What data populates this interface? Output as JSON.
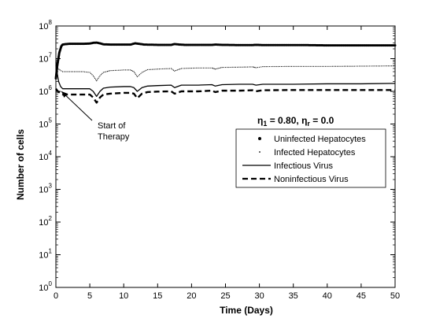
{
  "chart_data": {
    "type": "line",
    "title": "",
    "xlabel": "Time (Days)",
    "ylabel": "Number of cells",
    "xlim": [
      0,
      50
    ],
    "ylim_exponents": [
      0,
      8
    ],
    "log_y": true,
    "grid": false,
    "legend_placement": "right",
    "x_ticks": [
      "0",
      "5",
      "10",
      "15",
      "20",
      "25",
      "30",
      "35",
      "40",
      "45",
      "50"
    ],
    "y_ticks": [
      {
        "base": "10",
        "exp": "0"
      },
      {
        "base": "10",
        "exp": "1"
      },
      {
        "base": "10",
        "exp": "2"
      },
      {
        "base": "10",
        "exp": "3"
      },
      {
        "base": "10",
        "exp": "4"
      },
      {
        "base": "10",
        "exp": "5"
      },
      {
        "base": "10",
        "exp": "6"
      },
      {
        "base": "10",
        "exp": "7"
      },
      {
        "base": "10",
        "exp": "8"
      }
    ],
    "parameter_label": {
      "eta1_symbol": "η",
      "eta1_sub": "1",
      "eta1_value": " = 0.80, ",
      "etar_symbol": "η",
      "etar_sub": "r",
      "etar_value": " = 0.0"
    },
    "annotation": {
      "line1": "Start of",
      "line2": "Therapy",
      "x": 0.5,
      "y": 3000000
    },
    "series": [
      {
        "name": "Uninfected Hepatocytes",
        "style": "dotted-thick",
        "x": [
          0,
          0.2,
          0.5,
          0.8,
          1,
          1.5,
          2,
          3,
          4,
          5,
          5.5,
          6,
          6.5,
          7,
          8,
          9,
          10,
          11,
          11.7,
          12.5,
          13,
          15,
          17,
          17.5,
          18.2,
          19,
          21,
          23,
          23.5,
          24.5,
          27,
          29,
          29.5,
          30.5,
          33,
          35,
          37,
          40,
          45,
          50
        ],
        "y": [
          2500000,
          6000000,
          15000000,
          24000000,
          27000000,
          28000000,
          28500000,
          28500000,
          28500000,
          29000000,
          30500000,
          31000000,
          29500000,
          27500000,
          27000000,
          27000000,
          27000000,
          27000000,
          29500000,
          28000000,
          27000000,
          26500000,
          26500000,
          28000000,
          27000000,
          26500000,
          26500000,
          26500000,
          27000000,
          26500000,
          26000000,
          26000000,
          26500000,
          26000000,
          26000000,
          26000000,
          26000000,
          25500000,
          25500000,
          25500000
        ]
      },
      {
        "name": "Infected Hepatocytes",
        "style": "dotted-thin",
        "x": [
          0,
          0.3,
          0.6,
          1,
          1.5,
          2,
          3,
          4,
          5,
          5.5,
          6,
          6.5,
          7,
          8,
          10,
          11,
          11.5,
          12,
          12.7,
          13.5,
          15,
          17,
          17.5,
          18.5,
          21,
          23,
          23.5,
          24.5,
          27,
          29,
          29.5,
          30.5,
          35,
          40,
          45,
          50
        ],
        "y": [
          6000000,
          5000000,
          4500000,
          4000000,
          4000000,
          4000000,
          4000000,
          4000000,
          3800000,
          3000000,
          2100000,
          3000000,
          3800000,
          4300000,
          4500000,
          4500000,
          4000000,
          2800000,
          3800000,
          4600000,
          4800000,
          5000000,
          4200000,
          5000000,
          5200000,
          5200000,
          4800000,
          5400000,
          5500000,
          5600000,
          5300000,
          5700000,
          5800000,
          5800000,
          5900000,
          6000000
        ]
      },
      {
        "name": "Infectious Virus",
        "style": "solid",
        "x": [
          0,
          0.2,
          0.4,
          0.7,
          1,
          1.5,
          2,
          3,
          5,
          5.5,
          6,
          6.5,
          7,
          8,
          10,
          11,
          11.5,
          12,
          12.7,
          13.5,
          15,
          17,
          17.5,
          18.5,
          21,
          23,
          23.5,
          24.5,
          27,
          29,
          29.5,
          30.5,
          35,
          40,
          45,
          50
        ],
        "y": [
          8000000,
          3500000,
          2000000,
          1400000,
          1200000,
          1200000,
          1200000,
          1200000,
          1200000,
          1000000,
          700000,
          1000000,
          1250000,
          1350000,
          1400000,
          1400000,
          1300000,
          1000000,
          1300000,
          1450000,
          1500000,
          1550000,
          1300000,
          1550000,
          1550000,
          1600000,
          1450000,
          1600000,
          1650000,
          1650000,
          1550000,
          1650000,
          1650000,
          1700000,
          1700000,
          1750000
        ]
      },
      {
        "name": "Noninfectious Virus",
        "style": "dashed",
        "x": [
          0,
          0.3,
          0.6,
          1,
          1.5,
          2,
          3,
          5,
          5.5,
          6,
          6.5,
          7,
          8,
          10,
          11,
          11.5,
          12,
          12.7,
          13.5,
          15,
          17,
          17.5,
          18.5,
          21,
          23,
          23.5,
          24.5,
          27,
          29,
          29.5,
          30.5,
          35,
          40,
          45,
          50
        ],
        "y": [
          1200000,
          1000000,
          900000,
          800000,
          800000,
          800000,
          800000,
          800000,
          650000,
          450000,
          650000,
          800000,
          850000,
          900000,
          900000,
          850000,
          620000,
          850000,
          950000,
          980000,
          1000000,
          850000,
          1000000,
          1000000,
          1050000,
          950000,
          1050000,
          1050000,
          1080000,
          1000000,
          1080000,
          1100000,
          1100000,
          1100000,
          1100000
        ]
      }
    ]
  }
}
